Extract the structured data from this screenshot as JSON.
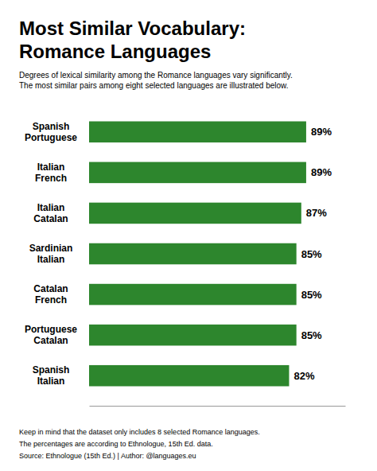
{
  "chart_data": {
    "type": "bar",
    "orientation": "horizontal",
    "title": "Most Similar Vocabulary:\nRomance Languages",
    "subtitle": "Degrees of lexical similarity among the Romance languages vary significantly.\nThe most similar pairs among eight selected languages are illustrated below.",
    "annotations": [
      "Keep in mind that the dataset only includes 8 selected Romance languages.",
      "The percentages are according to Ethnologue, 15th Ed. data.",
      "Source: Ethnologue (15th Ed.) | Author: @languages.eu"
    ],
    "categories": [
      "Spanish\nPortuguese",
      "Italian\nFrench",
      "Italian\nCatalan",
      "Sardinian\nItalian",
      "Catalan\nFrench",
      "Portuguese\nCatalan",
      "Spanish\nItalian"
    ],
    "values": [
      89,
      89,
      87,
      85,
      85,
      85,
      82
    ],
    "value_labels": [
      "89%",
      "89%",
      "87%",
      "85%",
      "85%",
      "85%",
      "82%"
    ],
    "data_labels": true,
    "color": "#2d862d",
    "xlim": [
      0,
      105
    ],
    "grid": false,
    "tick_labels": false
  }
}
